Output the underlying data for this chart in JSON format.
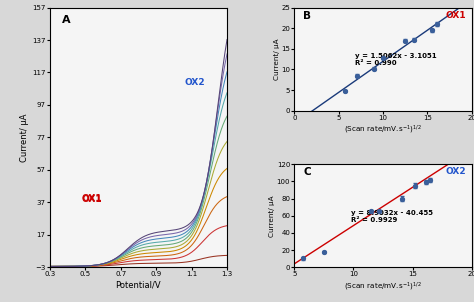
{
  "panel_A": {
    "label": "A",
    "xlabel": "Potential/V",
    "ylabel": "Current/ μA",
    "xlim": [
      0.3,
      1.3
    ],
    "ylim": [
      -3,
      157
    ],
    "yticks": [
      -3,
      17,
      37,
      57,
      77,
      97,
      117,
      137,
      157
    ],
    "xticks": [
      0.3,
      0.5,
      0.7,
      0.9,
      1.1,
      1.3
    ],
    "ox1_label": "OX1",
    "ox1_color": "#cc0000",
    "ox2_label": "OX2",
    "ox2_color": "#2255cc",
    "curve_colors": [
      "#884422",
      "#993333",
      "#cc3300",
      "#cc6600",
      "#ccaa00",
      "#aabb55",
      "#55aaaa",
      "#3377bb",
      "#8855aa",
      "#555577"
    ],
    "scales_ox1": [
      2.0,
      3.5,
      5.0,
      6.5,
      8.5,
      10.5,
      13.0,
      16.0,
      19.0,
      22.0
    ],
    "scales_ox2": [
      8,
      15,
      25,
      38,
      55,
      75,
      98,
      125,
      148,
      157
    ],
    "center_ox1": [
      0.68,
      0.69,
      0.7,
      0.7,
      0.71,
      0.72,
      0.73,
      0.73,
      0.74,
      0.75
    ],
    "center_ox2": [
      1.18,
      1.19,
      1.2,
      1.21,
      1.22,
      1.23,
      1.24,
      1.25,
      1.26,
      1.27
    ]
  },
  "panel_B": {
    "label": "B",
    "ylabel": "Current/ μA",
    "xlim": [
      0,
      20
    ],
    "ylim": [
      0,
      25
    ],
    "xticks": [
      0,
      5,
      10,
      15,
      20
    ],
    "yticks": [
      0,
      5,
      10,
      15,
      20,
      25
    ],
    "ox1_label": "OX1",
    "ox1_color": "#cc0000",
    "line_color": "#1a3a7a",
    "equation": "y = 1.5062x - 3.1051",
    "r2": "R² = 0.990",
    "data_x": [
      5.7,
      7.1,
      9.0,
      10.0,
      12.5,
      13.5,
      15.5,
      16.1
    ],
    "data_y": [
      4.8,
      8.5,
      10.2,
      12.8,
      17.0,
      17.2,
      19.5,
      21.0
    ],
    "yerr": [
      0.3,
      0.3,
      0.3,
      0.4,
      0.3,
      0.4,
      0.4,
      0.5
    ],
    "slope": 1.5062,
    "intercept": -3.1051
  },
  "panel_C": {
    "label": "C",
    "ylabel": "Current/ μA",
    "xlim": [
      5,
      20
    ],
    "ylim": [
      0,
      120
    ],
    "xticks": [
      5,
      10,
      15,
      20
    ],
    "yticks": [
      0,
      20,
      40,
      60,
      80,
      100,
      120
    ],
    "ox2_label": "OX2",
    "ox2_color": "#2255cc",
    "line_color": "#cc0000",
    "equation": "y = 8.9032x - 40.455",
    "r2": "R² = 0.9929",
    "data_x": [
      5.7,
      7.5,
      11.5,
      12.2,
      14.1,
      15.2,
      16.1,
      16.5
    ],
    "data_y": [
      10.5,
      18.0,
      65.0,
      65.0,
      80.0,
      95.0,
      99.0,
      101.5
    ],
    "yerr": [
      1.5,
      1.5,
      2.0,
      2.0,
      2.5,
      3.0,
      2.5,
      2.5
    ],
    "slope": 8.9032,
    "intercept": -40.455
  },
  "bg_color": "#d8d8d8"
}
